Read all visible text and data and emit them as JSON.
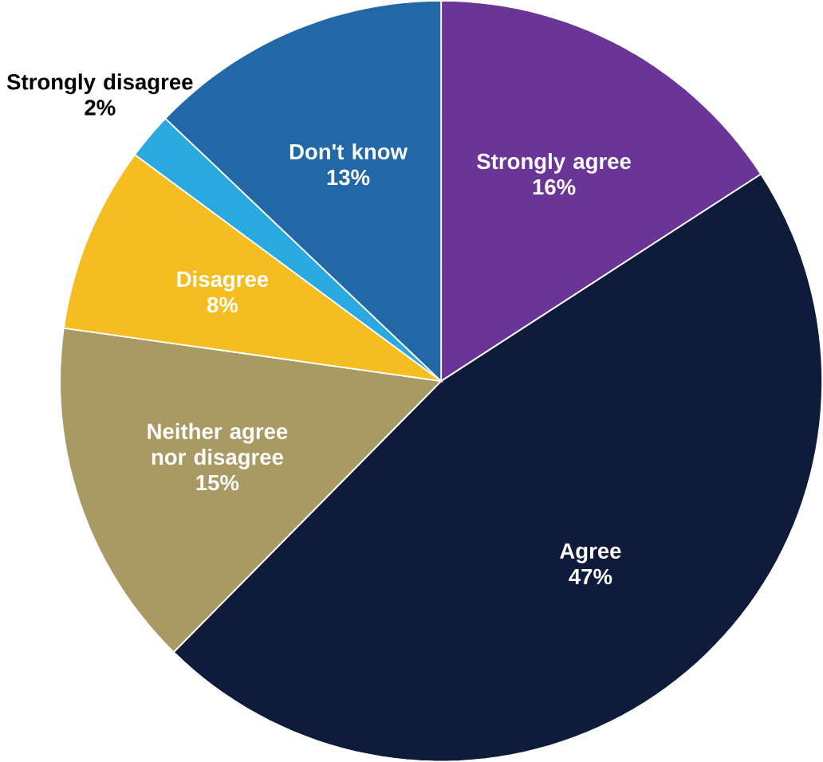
{
  "chart_data": {
    "type": "pie",
    "categories": [
      "Strongly agree",
      "Agree",
      "Neither agree nor disagree",
      "Disagree",
      "Strongly disagree",
      "Don't know"
    ],
    "values": [
      16,
      47,
      15,
      8,
      2,
      13
    ],
    "value_labels": [
      "16%",
      "47%",
      "15%",
      "8%",
      "2%",
      "13%"
    ],
    "colors": [
      "#6a3596",
      "#0f1b3a",
      "#a89a62",
      "#f5bd1f",
      "#29a9e0",
      "#2267a6"
    ]
  }
}
